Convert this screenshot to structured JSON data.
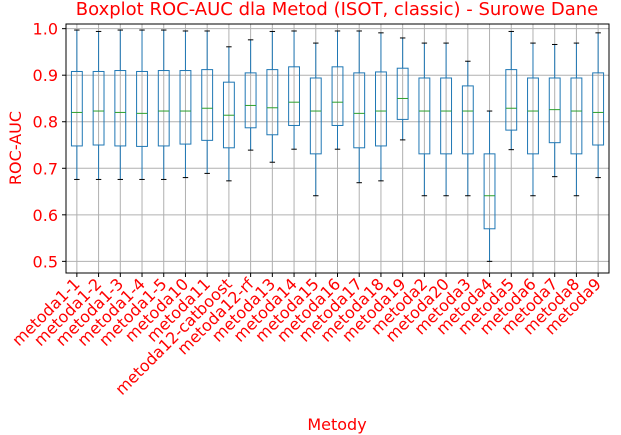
{
  "chart_data": {
    "type": "boxplot",
    "title": "Boxplot ROC-AUC dla Metod (ISOT, classic) - Surowe Dane",
    "xlabel": "Metody",
    "ylabel": "ROC-AUC",
    "ylim": [
      0.475,
      1.01
    ],
    "yticks": [
      0.5,
      0.6,
      0.7,
      0.8,
      0.9,
      1.0
    ],
    "ytick_labels": [
      "0.5",
      "0.6",
      "0.7",
      "0.8",
      "0.9",
      "1.0"
    ],
    "grid": true,
    "colors": {
      "box": "#1f77b4",
      "median": "#2ca02c",
      "cap": "#000000",
      "text": "#ff0000",
      "grid": "#b0b0b0"
    },
    "categories": [
      "metoda1-1",
      "metoda1-2",
      "metoda1-3",
      "metoda1-4",
      "metoda1-5",
      "metoda10",
      "metoda11",
      "metoda12-catboost",
      "metoda12-rf",
      "metoda13",
      "metoda14",
      "metoda15",
      "metoda16",
      "metoda17",
      "metoda18",
      "metoda19",
      "metoda2",
      "metoda20",
      "metoda3",
      "metoda4",
      "metoda5",
      "metoda6",
      "metoda7",
      "metoda8",
      "metoda9"
    ],
    "boxes": [
      {
        "whislo": 0.676,
        "q1": 0.748,
        "med": 0.82,
        "q3": 0.908,
        "whishi": 0.997
      },
      {
        "whislo": 0.676,
        "q1": 0.75,
        "med": 0.823,
        "q3": 0.908,
        "whishi": 0.994
      },
      {
        "whislo": 0.676,
        "q1": 0.748,
        "med": 0.82,
        "q3": 0.91,
        "whishi": 0.997
      },
      {
        "whislo": 0.676,
        "q1": 0.747,
        "med": 0.818,
        "q3": 0.908,
        "whishi": 0.997
      },
      {
        "whislo": 0.676,
        "q1": 0.748,
        "med": 0.823,
        "q3": 0.91,
        "whishi": 0.997
      },
      {
        "whislo": 0.68,
        "q1": 0.752,
        "med": 0.823,
        "q3": 0.91,
        "whishi": 0.995
      },
      {
        "whislo": 0.689,
        "q1": 0.76,
        "med": 0.829,
        "q3": 0.912,
        "whishi": 0.995
      },
      {
        "whislo": 0.673,
        "q1": 0.744,
        "med": 0.814,
        "q3": 0.885,
        "whishi": 0.961
      },
      {
        "whislo": 0.739,
        "q1": 0.787,
        "med": 0.835,
        "q3": 0.905,
        "whishi": 0.976
      },
      {
        "whislo": 0.713,
        "q1": 0.772,
        "med": 0.83,
        "q3": 0.912,
        "whishi": 0.994
      },
      {
        "whislo": 0.741,
        "q1": 0.792,
        "med": 0.842,
        "q3": 0.918,
        "whishi": 0.995
      },
      {
        "whislo": 0.641,
        "q1": 0.731,
        "med": 0.823,
        "q3": 0.894,
        "whishi": 0.969
      },
      {
        "whislo": 0.741,
        "q1": 0.792,
        "med": 0.842,
        "q3": 0.918,
        "whishi": 0.995
      },
      {
        "whislo": 0.669,
        "q1": 0.744,
        "med": 0.818,
        "q3": 0.905,
        "whishi": 0.995
      },
      {
        "whislo": 0.673,
        "q1": 0.748,
        "med": 0.823,
        "q3": 0.907,
        "whishi": 0.991
      },
      {
        "whislo": 0.761,
        "q1": 0.805,
        "med": 0.85,
        "q3": 0.915,
        "whishi": 0.98
      },
      {
        "whislo": 0.641,
        "q1": 0.731,
        "med": 0.823,
        "q3": 0.894,
        "whishi": 0.969
      },
      {
        "whislo": 0.641,
        "q1": 0.731,
        "med": 0.823,
        "q3": 0.894,
        "whishi": 0.969
      },
      {
        "whislo": 0.641,
        "q1": 0.731,
        "med": 0.823,
        "q3": 0.877,
        "whishi": 0.93
      },
      {
        "whislo": 0.5,
        "q1": 0.57,
        "med": 0.641,
        "q3": 0.731,
        "whishi": 0.823
      },
      {
        "whislo": 0.74,
        "q1": 0.782,
        "med": 0.829,
        "q3": 0.912,
        "whishi": 0.994
      },
      {
        "whislo": 0.641,
        "q1": 0.731,
        "med": 0.823,
        "q3": 0.894,
        "whishi": 0.969
      },
      {
        "whislo": 0.682,
        "q1": 0.755,
        "med": 0.826,
        "q3": 0.894,
        "whishi": 0.966
      },
      {
        "whislo": 0.641,
        "q1": 0.731,
        "med": 0.823,
        "q3": 0.894,
        "whishi": 0.969
      },
      {
        "whislo": 0.68,
        "q1": 0.75,
        "med": 0.82,
        "q3": 0.905,
        "whishi": 0.991
      }
    ]
  }
}
